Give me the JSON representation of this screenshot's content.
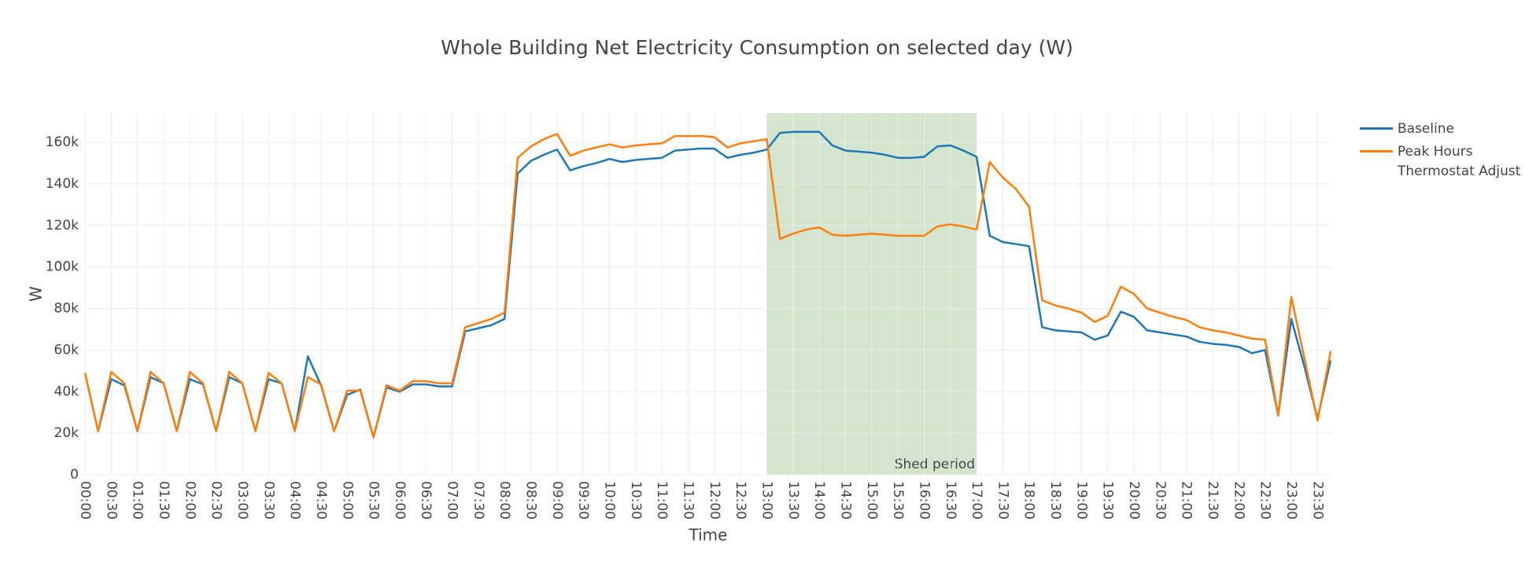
{
  "chart_data": {
    "type": "line",
    "title": "Whole Building Net Electricity Consumption on selected day (W)",
    "x_label": "Time",
    "y_label": "W",
    "x": [
      0,
      15,
      30,
      45,
      60,
      75,
      90,
      105,
      120,
      135,
      150,
      165,
      180,
      195,
      210,
      225,
      240,
      255,
      270,
      285,
      300,
      315,
      330,
      345,
      360,
      375,
      390,
      405,
      420,
      435,
      450,
      465,
      480,
      495,
      510,
      525,
      540,
      555,
      570,
      585,
      600,
      615,
      630,
      645,
      660,
      675,
      690,
      705,
      720,
      735,
      750,
      765,
      780,
      795,
      810,
      825,
      840,
      855,
      870,
      885,
      900,
      915,
      930,
      945,
      960,
      975,
      990,
      1005,
      1020,
      1035,
      1050,
      1065,
      1080,
      1095,
      1110,
      1125,
      1140,
      1155,
      1170,
      1185,
      1200,
      1215,
      1230,
      1245,
      1260,
      1275,
      1290,
      1305,
      1320,
      1335,
      1350,
      1365,
      1380,
      1395,
      1410,
      1425
    ],
    "xlim": [
      0,
      1425
    ],
    "xticks": [
      {
        "value": 0,
        "label": "00:00"
      },
      {
        "value": 30,
        "label": "00:30"
      },
      {
        "value": 60,
        "label": "01:00"
      },
      {
        "value": 90,
        "label": "01:30"
      },
      {
        "value": 120,
        "label": "02:00"
      },
      {
        "value": 150,
        "label": "02:30"
      },
      {
        "value": 180,
        "label": "03:00"
      },
      {
        "value": 210,
        "label": "03:30"
      },
      {
        "value": 240,
        "label": "04:00"
      },
      {
        "value": 270,
        "label": "04:30"
      },
      {
        "value": 300,
        "label": "05:00"
      },
      {
        "value": 330,
        "label": "05:30"
      },
      {
        "value": 360,
        "label": "06:00"
      },
      {
        "value": 390,
        "label": "06:30"
      },
      {
        "value": 420,
        "label": "07:00"
      },
      {
        "value": 450,
        "label": "07:30"
      },
      {
        "value": 480,
        "label": "08:00"
      },
      {
        "value": 510,
        "label": "08:30"
      },
      {
        "value": 540,
        "label": "09:00"
      },
      {
        "value": 570,
        "label": "09:30"
      },
      {
        "value": 600,
        "label": "10:00"
      },
      {
        "value": 630,
        "label": "10:30"
      },
      {
        "value": 660,
        "label": "11:00"
      },
      {
        "value": 690,
        "label": "11:30"
      },
      {
        "value": 720,
        "label": "12:00"
      },
      {
        "value": 750,
        "label": "12:30"
      },
      {
        "value": 780,
        "label": "13:00"
      },
      {
        "value": 810,
        "label": "13:30"
      },
      {
        "value": 840,
        "label": "14:00"
      },
      {
        "value": 870,
        "label": "14:30"
      },
      {
        "value": 900,
        "label": "15:00"
      },
      {
        "value": 930,
        "label": "15:30"
      },
      {
        "value": 960,
        "label": "16:00"
      },
      {
        "value": 990,
        "label": "16:30"
      },
      {
        "value": 1020,
        "label": "17:00"
      },
      {
        "value": 1050,
        "label": "17:30"
      },
      {
        "value": 1080,
        "label": "18:00"
      },
      {
        "value": 1110,
        "label": "18:30"
      },
      {
        "value": 1140,
        "label": "19:00"
      },
      {
        "value": 1170,
        "label": "19:30"
      },
      {
        "value": 1200,
        "label": "20:00"
      },
      {
        "value": 1230,
        "label": "20:30"
      },
      {
        "value": 1260,
        "label": "21:00"
      },
      {
        "value": 1290,
        "label": "21:30"
      },
      {
        "value": 1320,
        "label": "22:00"
      },
      {
        "value": 1350,
        "label": "22:30"
      },
      {
        "value": 1380,
        "label": "23:00"
      },
      {
        "value": 1410,
        "label": "23:30"
      }
    ],
    "ylim": [
      0,
      174000
    ],
    "yticks": [
      0,
      {
        "value": 20000,
        "label": "20k"
      },
      {
        "value": 40000,
        "label": "40k"
      },
      {
        "value": 60000,
        "label": "60k"
      },
      {
        "value": 80000,
        "label": "80k"
      },
      {
        "value": 100000,
        "label": "100k"
      },
      {
        "value": 120000,
        "label": "120k"
      },
      {
        "value": 140000,
        "label": "140k"
      },
      {
        "value": 160000,
        "label": "160k"
      }
    ],
    "grid": true,
    "legend_position": "right",
    "shaded_region": {
      "x": [
        780,
        1020
      ],
      "label": "Shed period",
      "color": "#d3e6cd"
    },
    "series": [
      {
        "name": "Baseline",
        "color": "#1f77b4",
        "values": [
          49000,
          21000,
          46000,
          43000,
          21000,
          47000,
          44000,
          21000,
          46000,
          43500,
          21000,
          47000,
          44000,
          21000,
          46000,
          44000,
          21000,
          57000,
          43000,
          21000,
          38500,
          41000,
          18000,
          42000,
          40000,
          43500,
          43500,
          42500,
          42500,
          69000,
          70500,
          72000,
          75000,
          145000,
          151000,
          154000,
          156500,
          146500,
          148500,
          150000,
          152000,
          150500,
          151500,
          152000,
          152500,
          156000,
          156500,
          157000,
          157000,
          152500,
          154000,
          155000,
          156500,
          164500,
          165000,
          165000,
          165000,
          158500,
          156000,
          155500,
          155000,
          154000,
          152500,
          152500,
          153000,
          158000,
          158500,
          156000,
          153000,
          115000,
          112000,
          111000,
          110000,
          71000,
          69500,
          69000,
          68500,
          65000,
          67000,
          78500,
          76000,
          69500,
          68500,
          67500,
          66500,
          64000,
          63000,
          62500,
          61500,
          58500,
          60000,
          28500,
          75000,
          52000,
          27000,
          55000
        ]
      },
      {
        "name": "Peak Hours Thermostat Adjust",
        "color": "#ff7f0e",
        "values": [
          49000,
          21000,
          49500,
          44000,
          21000,
          49500,
          44000,
          21000,
          49500,
          44000,
          21000,
          49500,
          44000,
          21000,
          49000,
          44000,
          21000,
          47000,
          43500,
          21000,
          40500,
          40500,
          18000,
          43000,
          40500,
          45000,
          45000,
          44000,
          44000,
          71000,
          73000,
          75000,
          78000,
          152500,
          158000,
          161500,
          164000,
          153500,
          156000,
          157500,
          159000,
          157500,
          158500,
          159000,
          159500,
          163000,
          163000,
          163000,
          162500,
          157500,
          159500,
          160500,
          161500,
          113500,
          116000,
          118000,
          119000,
          115500,
          115000,
          115500,
          116000,
          115500,
          115000,
          115000,
          115000,
          119500,
          120500,
          119500,
          118000,
          150500,
          143000,
          137500,
          129000,
          84000,
          81500,
          80000,
          78000,
          73500,
          76500,
          90500,
          87000,
          80000,
          78000,
          76000,
          74500,
          71000,
          69500,
          68500,
          67000,
          65500,
          65000,
          28500,
          85500,
          56000,
          26000,
          59500
        ]
      }
    ]
  }
}
